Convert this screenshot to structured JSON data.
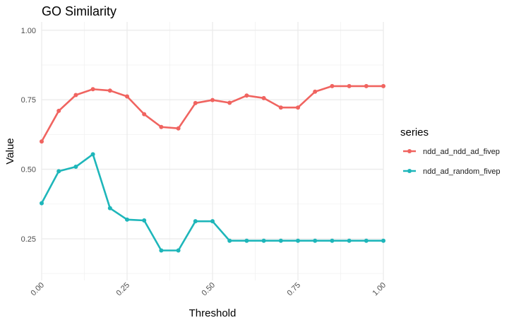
{
  "chart_data": {
    "type": "line",
    "title": "GO Similarity",
    "xlabel": "Threshold",
    "ylabel": "Value",
    "xlim": [
      0,
      1
    ],
    "ylim": [
      0.1,
      1.03
    ],
    "x_ticks": [
      0,
      0.25,
      0.5,
      0.75,
      1.0
    ],
    "x_tick_labels": [
      "0.00",
      "0.25",
      "0.50",
      "0.75",
      "1.00"
    ],
    "y_ticks": [
      0.25,
      0.5,
      0.75,
      1.0
    ],
    "y_tick_labels": [
      "0.25",
      "0.50",
      "0.75",
      "1.00"
    ],
    "grid": true,
    "legend_title": "series",
    "legend_position": "right",
    "x": [
      0,
      0.05,
      0.1,
      0.15,
      0.2,
      0.25,
      0.3,
      0.35,
      0.4,
      0.45,
      0.5,
      0.55,
      0.6,
      0.65,
      0.7,
      0.75,
      0.8,
      0.85,
      0.9,
      0.95,
      1.0
    ],
    "series": [
      {
        "name": "ndd_ad_ndd_ad_fivep",
        "color": "#f06460",
        "values": [
          0.6,
          0.71,
          0.767,
          0.788,
          0.783,
          0.762,
          0.698,
          0.652,
          0.647,
          0.738,
          0.749,
          0.739,
          0.765,
          0.756,
          0.722,
          0.722,
          0.779,
          0.799,
          0.799,
          0.799,
          0.799
        ]
      },
      {
        "name": "ndd_ad_random_fivep",
        "color": "#1eb6ba",
        "values": [
          0.378,
          0.493,
          0.509,
          0.554,
          0.36,
          0.319,
          0.316,
          0.208,
          0.208,
          0.313,
          0.313,
          0.243,
          0.243,
          0.243,
          0.243,
          0.243,
          0.243,
          0.243,
          0.243,
          0.243,
          0.243
        ]
      }
    ]
  }
}
